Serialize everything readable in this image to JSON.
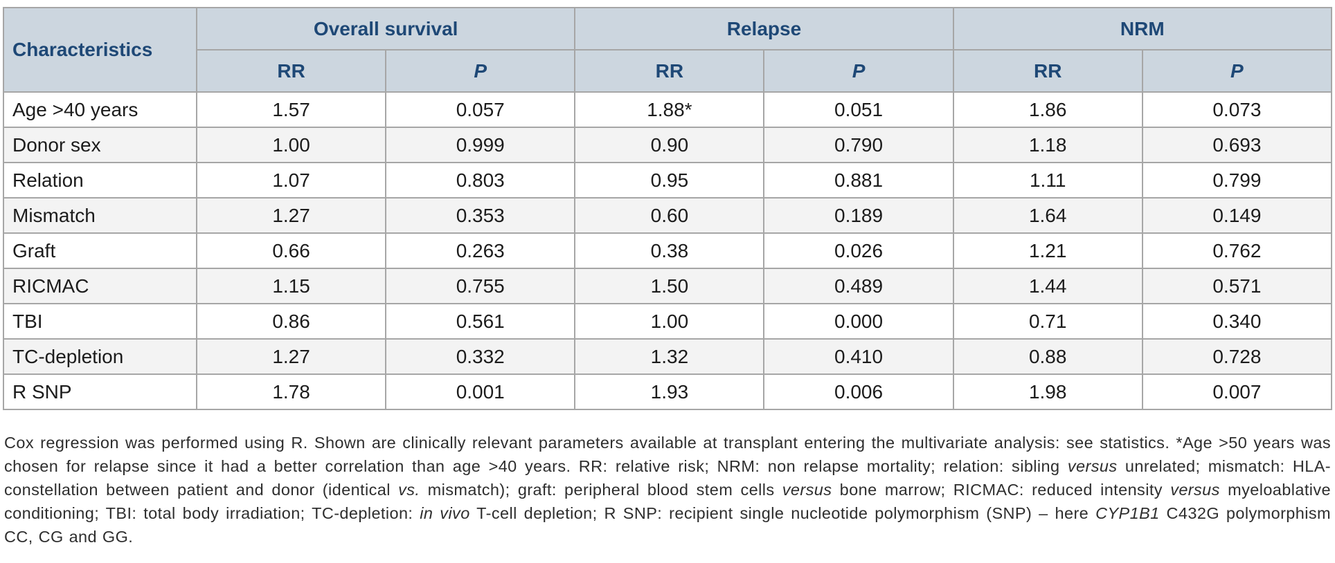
{
  "table": {
    "header": {
      "characteristics": "Characteristics",
      "groups": [
        {
          "label": "Overall survival"
        },
        {
          "label": "Relapse"
        },
        {
          "label": "NRM"
        }
      ],
      "sub": {
        "rr": "RR",
        "p": "P"
      }
    },
    "rows": [
      {
        "characteristic": "Age >40 years",
        "os_rr": "1.57",
        "os_p": "0.057",
        "rel_rr": "1.88*",
        "rel_p": "0.051",
        "nrm_rr": "1.86",
        "nrm_p": "0.073"
      },
      {
        "characteristic": "Donor sex",
        "os_rr": "1.00",
        "os_p": "0.999",
        "rel_rr": "0.90",
        "rel_p": "0.790",
        "nrm_rr": "1.18",
        "nrm_p": "0.693"
      },
      {
        "characteristic": "Relation",
        "os_rr": "1.07",
        "os_p": "0.803",
        "rel_rr": "0.95",
        "rel_p": "0.881",
        "nrm_rr": "1.11",
        "nrm_p": "0.799"
      },
      {
        "characteristic": "Mismatch",
        "os_rr": "1.27",
        "os_p": "0.353",
        "rel_rr": "0.60",
        "rel_p": "0.189",
        "nrm_rr": "1.64",
        "nrm_p": "0.149"
      },
      {
        "characteristic": "Graft",
        "os_rr": "0.66",
        "os_p": "0.263",
        "rel_rr": "0.38",
        "rel_p": "0.026",
        "nrm_rr": "1.21",
        "nrm_p": "0.762"
      },
      {
        "characteristic": "RICMAC",
        "os_rr": "1.15",
        "os_p": "0.755",
        "rel_rr": "1.50",
        "rel_p": "0.489",
        "nrm_rr": "1.44",
        "nrm_p": "0.571"
      },
      {
        "characteristic": "TBI",
        "os_rr": "0.86",
        "os_p": "0.561",
        "rel_rr": "1.00",
        "rel_p": "0.000",
        "nrm_rr": "0.71",
        "nrm_p": "0.340"
      },
      {
        "characteristic": "TC-depletion",
        "os_rr": "1.27",
        "os_p": "0.332",
        "rel_rr": "1.32",
        "rel_p": "0.410",
        "nrm_rr": "0.88",
        "nrm_p": "0.728"
      },
      {
        "characteristic": "R SNP",
        "os_rr": "1.78",
        "os_p": "0.001",
        "rel_rr": "1.93",
        "rel_p": "0.006",
        "nrm_rr": "1.98",
        "nrm_p": "0.007"
      }
    ]
  },
  "footnote": {
    "segments": [
      {
        "text": "Cox regression was performed using R. Shown are clinically relevant parameters available at transplant entering the multivariate analysis: see statistics. *Age >50 years was chosen for relapse since it had a better correlation than age >40 years. RR: relative risk; NRM: non relapse mortality; relation: sibling ",
        "italic": false
      },
      {
        "text": "versus",
        "italic": true
      },
      {
        "text": " unrelated; mismatch: HLA-constellation between patient and donor (identical ",
        "italic": false
      },
      {
        "text": "vs.",
        "italic": true
      },
      {
        "text": " mismatch); graft: peripheral blood stem cells ",
        "italic": false
      },
      {
        "text": "versus",
        "italic": true
      },
      {
        "text": " bone marrow; RICMAC: reduced intensity ",
        "italic": false
      },
      {
        "text": "versus",
        "italic": true
      },
      {
        "text": " myeloablative conditioning; TBI: total body irradiation; TC-depletion: ",
        "italic": false
      },
      {
        "text": "in vivo",
        "italic": true
      },
      {
        "text": " T-cell depletion; R SNP: recipient single nucleotide polymorphism (SNP) – here ",
        "italic": false
      },
      {
        "text": "CYP1B1",
        "italic": true
      },
      {
        "text": " C432G polymorphism CC, CG and GG.",
        "italic": false
      }
    ]
  },
  "colors": {
    "header_bg": "#ccd6df",
    "header_text": "#1e4876",
    "border": "#a6a6a6",
    "row_alt_bg": "#f3f3f3",
    "body_text": "#1c1c1c",
    "footnote_text": "#2e2e2e"
  }
}
